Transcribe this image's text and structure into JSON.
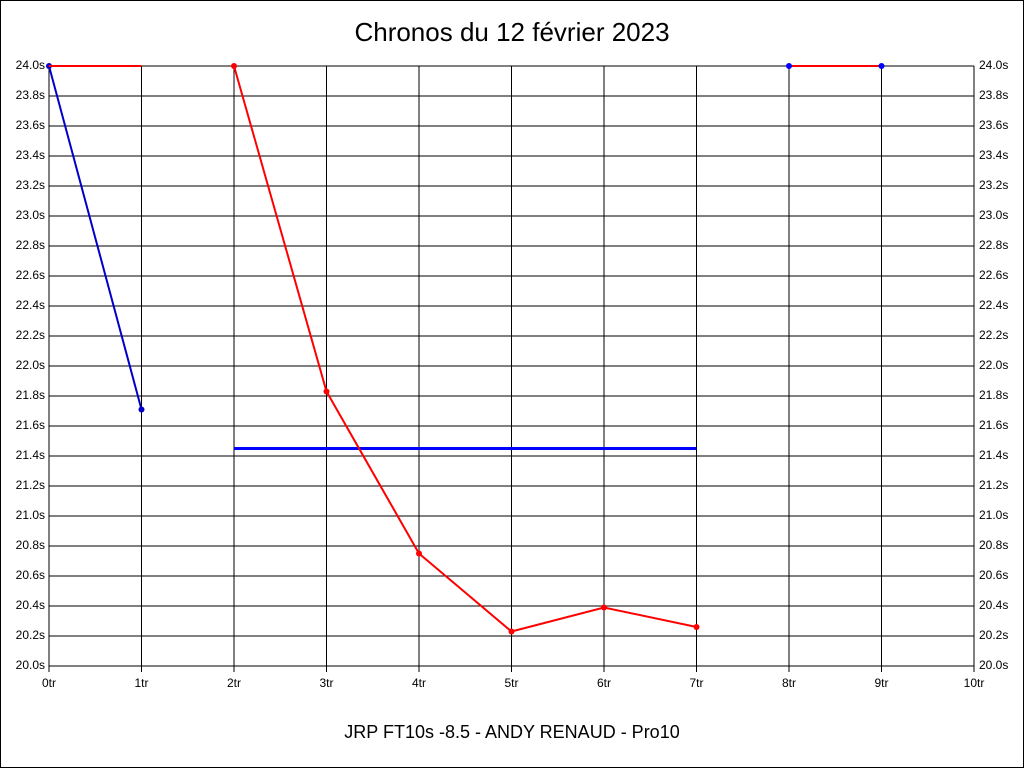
{
  "chart_data": {
    "type": "line",
    "title": "Chronos du 12 février 2023",
    "footer": "JRP FT10s -8.5 - ANDY RENAUD - Pro10",
    "x": [
      0,
      1,
      2,
      3,
      4,
      5,
      6,
      7,
      8,
      9
    ],
    "series": [
      {
        "color": "#0000c8",
        "marker_color": "#0000c8",
        "values": [
          24.0,
          21.71,
          null,
          null,
          null,
          null,
          null,
          null,
          null,
          null
        ]
      },
      {
        "color": "#ff0000",
        "marker_color": "#ff0000",
        "values": [
          null,
          null,
          24.0,
          21.83,
          20.75,
          20.23,
          20.39,
          20.26,
          null,
          null
        ]
      },
      {
        "color": "#ff0000",
        "marker_color": "#0000ff",
        "values": [
          null,
          null,
          null,
          null,
          null,
          null,
          null,
          null,
          24.0,
          24.0
        ]
      },
      {
        "color": "#ff0000",
        "values": [
          24.0,
          24.0,
          null,
          null,
          null,
          null,
          null,
          null,
          null,
          null
        ]
      }
    ],
    "reference_line": {
      "value": 21.45,
      "x": [
        2,
        7
      ],
      "color": "#0000ff"
    },
    "xlim": [
      0,
      10
    ],
    "xticks": [
      {
        "value": 0,
        "label": "0tr"
      },
      {
        "value": 1,
        "label": "1tr"
      },
      {
        "value": 2,
        "label": "2tr"
      },
      {
        "value": 3,
        "label": "3tr"
      },
      {
        "value": 4,
        "label": "4tr"
      },
      {
        "value": 5,
        "label": "5tr"
      },
      {
        "value": 6,
        "label": "6tr"
      },
      {
        "value": 7,
        "label": "7tr"
      },
      {
        "value": 8,
        "label": "8tr"
      },
      {
        "value": 9,
        "label": "9tr"
      },
      {
        "value": 10,
        "label": "10tr"
      }
    ],
    "ylim": [
      20.0,
      24.0
    ],
    "yticks": [
      {
        "value": 20.0,
        "label": "20.0s"
      },
      {
        "value": 20.2,
        "label": "20.2s"
      },
      {
        "value": 20.4,
        "label": "20.4s"
      },
      {
        "value": 20.6,
        "label": "20.6s"
      },
      {
        "value": 20.8,
        "label": "20.8s"
      },
      {
        "value": 21.0,
        "label": "21.0s"
      },
      {
        "value": 21.2,
        "label": "21.2s"
      },
      {
        "value": 21.4,
        "label": "21.4s"
      },
      {
        "value": 21.6,
        "label": "21.6s"
      },
      {
        "value": 21.8,
        "label": "21.8s"
      },
      {
        "value": 22.0,
        "label": "22.0s"
      },
      {
        "value": 22.2,
        "label": "22.2s"
      },
      {
        "value": 22.4,
        "label": "22.4s"
      },
      {
        "value": 22.6,
        "label": "22.6s"
      },
      {
        "value": 22.8,
        "label": "22.8s"
      },
      {
        "value": 23.0,
        "label": "23.0s"
      },
      {
        "value": 23.2,
        "label": "23.2s"
      },
      {
        "value": 23.4,
        "label": "23.4s"
      },
      {
        "value": 23.6,
        "label": "23.6s"
      },
      {
        "value": 23.8,
        "label": "23.8s"
      },
      {
        "value": 24.0,
        "label": "24.0s"
      }
    ],
    "grid": true
  }
}
